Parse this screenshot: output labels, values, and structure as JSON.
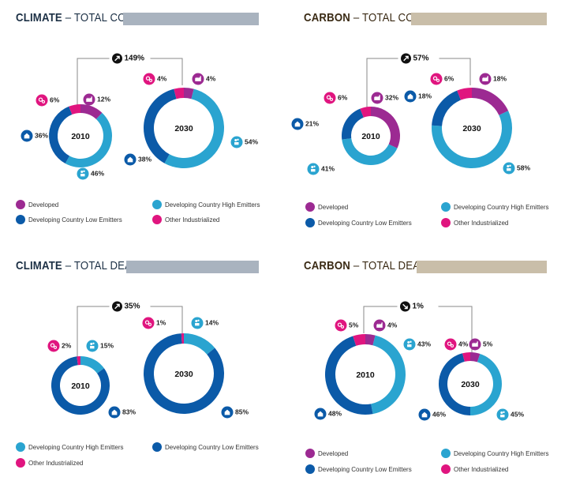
{
  "colors": {
    "developed": "#9c2a92",
    "high_emitters": "#2aa4d0",
    "low_emitters": "#0b5aa8",
    "other_industrialized": "#e0157f",
    "climate_bar": "#a9b3bf",
    "carbon_bar": "#c9bea9",
    "climate_title": "#1c3045",
    "carbon_title": "#3a2a14",
    "text": "#222222"
  },
  "category_labels": {
    "developed": "Developed",
    "high_emitters": "Developing Country High Emitters",
    "low_emitters": "Developing Country Low Emitters",
    "other_industrialized": "Other Industrialized"
  },
  "chart_data": [
    {
      "type": "pie",
      "title_bold": "CLIMATE",
      "title_rest": " – TOTAL COSTS",
      "change_label": "149%",
      "change_direction": "up",
      "legend": [
        "developed",
        "high_emitters",
        "low_emitters",
        "other_industrialized"
      ],
      "donuts": [
        {
          "label": "2010",
          "slices": [
            {
              "category": "developed",
              "value": 12,
              "label": "12%"
            },
            {
              "category": "high_emitters",
              "value": 46,
              "label": "46%"
            },
            {
              "category": "low_emitters",
              "value": 36,
              "label": "36%"
            },
            {
              "category": "other_industrialized",
              "value": 6,
              "label": "6%"
            }
          ]
        },
        {
          "label": "2030",
          "slices": [
            {
              "category": "developed",
              "value": 4,
              "label": "4%"
            },
            {
              "category": "high_emitters",
              "value": 54,
              "label": "54%"
            },
            {
              "category": "low_emitters",
              "value": 38,
              "label": "38%"
            },
            {
              "category": "other_industrialized",
              "value": 4,
              "label": "4%"
            }
          ]
        }
      ]
    },
    {
      "type": "pie",
      "title_bold": "CARBON",
      "title_rest": " – TOTAL COSTS",
      "change_label": "57%",
      "change_direction": "up",
      "legend": [
        "developed",
        "high_emitters",
        "low_emitters",
        "other_industrialized"
      ],
      "donuts": [
        {
          "label": "2010",
          "slices": [
            {
              "category": "developed",
              "value": 32,
              "label": "32%"
            },
            {
              "category": "high_emitters",
              "value": 41,
              "label": "41%"
            },
            {
              "category": "low_emitters",
              "value": 21,
              "label": "21%"
            },
            {
              "category": "other_industrialized",
              "value": 6,
              "label": "6%"
            }
          ]
        },
        {
          "label": "2030",
          "slices": [
            {
              "category": "developed",
              "value": 18,
              "label": "18%"
            },
            {
              "category": "high_emitters",
              "value": 58,
              "label": "58%"
            },
            {
              "category": "low_emitters",
              "value": 18,
              "label": "18%"
            },
            {
              "category": "other_industrialized",
              "value": 6,
              "label": "6%"
            }
          ]
        }
      ]
    },
    {
      "type": "pie",
      "title_bold": "CLIMATE",
      "title_rest": " – TOTAL DEATHS",
      "change_label": "35%",
      "change_direction": "up",
      "legend": [
        "high_emitters",
        "low_emitters",
        "other_industrialized"
      ],
      "donuts": [
        {
          "label": "2010",
          "slices": [
            {
              "category": "high_emitters",
              "value": 15,
              "label": "15%"
            },
            {
              "category": "low_emitters",
              "value": 83,
              "label": "83%"
            },
            {
              "category": "other_industrialized",
              "value": 2,
              "label": "2%"
            }
          ]
        },
        {
          "label": "2030",
          "slices": [
            {
              "category": "high_emitters",
              "value": 14,
              "label": "14%"
            },
            {
              "category": "low_emitters",
              "value": 85,
              "label": "85%"
            },
            {
              "category": "other_industrialized",
              "value": 1,
              "label": "1%"
            }
          ]
        }
      ]
    },
    {
      "type": "pie",
      "title_bold": "CARBON",
      "title_rest": " – TOTAL DEATHS",
      "change_label": "1%",
      "change_direction": "down",
      "legend": [
        "developed",
        "high_emitters",
        "low_emitters",
        "other_industrialized"
      ],
      "donuts": [
        {
          "label": "2010",
          "slices": [
            {
              "category": "developed",
              "value": 4,
              "label": "4%"
            },
            {
              "category": "high_emitters",
              "value": 43,
              "label": "43%"
            },
            {
              "category": "low_emitters",
              "value": 48,
              "label": "48%"
            },
            {
              "category": "other_industrialized",
              "value": 5,
              "label": "5%"
            }
          ]
        },
        {
          "label": "2030",
          "slices": [
            {
              "category": "developed",
              "value": 5,
              "label": "5%"
            },
            {
              "category": "high_emitters",
              "value": 45,
              "label": "45%"
            },
            {
              "category": "low_emitters",
              "value": 46,
              "label": "46%"
            },
            {
              "category": "other_industrialized",
              "value": 4,
              "label": "4%"
            }
          ]
        }
      ]
    }
  ]
}
